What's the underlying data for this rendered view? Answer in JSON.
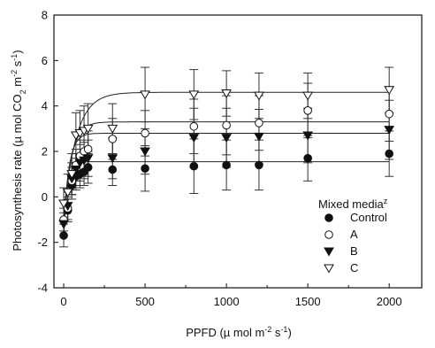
{
  "chart_data": {
    "type": "scatter",
    "xlabel": "PPFD (µ mol m⁻² s⁻¹)",
    "ylabel": "Photosynthesis rate (µ mol CO₂ m⁻² s⁻¹)",
    "xlim": [
      -60,
      2200
    ],
    "ylim": [
      -4,
      8
    ],
    "xticks": [
      "0",
      "500",
      "1000",
      "1500",
      "2000"
    ],
    "yticks": [
      "-4",
      "-2",
      "0",
      "2",
      "4",
      "6",
      "8"
    ],
    "legend_title": "Mixed mediaᶻ",
    "legend_placement": "lower-right",
    "grid": false,
    "x": [
      0,
      25,
      50,
      75,
      100,
      125,
      150,
      300,
      500,
      800,
      1000,
      1200,
      1500,
      2000
    ],
    "series": [
      {
        "name": "Control",
        "marker": "filled-circle",
        "values": [
          -1.7,
          -0.6,
          0.5,
          0.9,
          1.0,
          1.1,
          1.3,
          1.2,
          1.25,
          1.35,
          1.4,
          1.4,
          1.7,
          1.9
        ],
        "errors": [
          0.5,
          0.5,
          0.6,
          0.6,
          0.6,
          0.6,
          0.7,
          0.7,
          1.0,
          1.2,
          1.1,
          1.1,
          1.0,
          1.0
        ],
        "fit": {
          "pmax": 1.55,
          "rd": -1.8,
          "k": 0.045
        }
      },
      {
        "name": "A",
        "marker": "open-circle",
        "values": [
          -1.0,
          -0.5,
          0.7,
          1.4,
          1.8,
          2.0,
          2.1,
          2.55,
          2.8,
          3.1,
          3.15,
          3.25,
          3.8,
          3.65
        ],
        "errors": [
          0.5,
          0.5,
          0.6,
          0.7,
          0.7,
          0.8,
          0.8,
          0.9,
          1.0,
          1.2,
          1.3,
          1.2,
          1.2,
          1.2
        ],
        "fit": {
          "pmax": 3.3,
          "rd": -1.2,
          "k": 0.022
        }
      },
      {
        "name": "B",
        "marker": "filled-triangle-down",
        "values": [
          -1.2,
          -0.4,
          0.8,
          1.2,
          1.5,
          1.6,
          1.7,
          1.7,
          2.0,
          2.6,
          2.6,
          2.65,
          2.7,
          2.95
        ],
        "errors": [
          0.5,
          0.6,
          0.7,
          0.7,
          0.8,
          0.8,
          0.8,
          0.9,
          1.0,
          1.3,
          1.3,
          1.2,
          1.2,
          1.3
        ],
        "fit": {
          "pmax": 2.8,
          "rd": -1.3,
          "k": 0.03
        }
      },
      {
        "name": "C",
        "marker": "open-triangle-down",
        "values": [
          -0.3,
          0.2,
          1.0,
          2.7,
          2.8,
          2.9,
          3.0,
          3.0,
          4.5,
          4.5,
          4.55,
          4.45,
          4.45,
          4.7
        ],
        "errors": [
          0.7,
          0.8,
          0.9,
          1.0,
          1.0,
          1.1,
          1.1,
          1.1,
          1.2,
          1.1,
          1.0,
          1.0,
          1.0,
          1.0
        ],
        "fit": {
          "pmax": 4.6,
          "rd": -0.8,
          "k": 0.013
        }
      }
    ]
  }
}
